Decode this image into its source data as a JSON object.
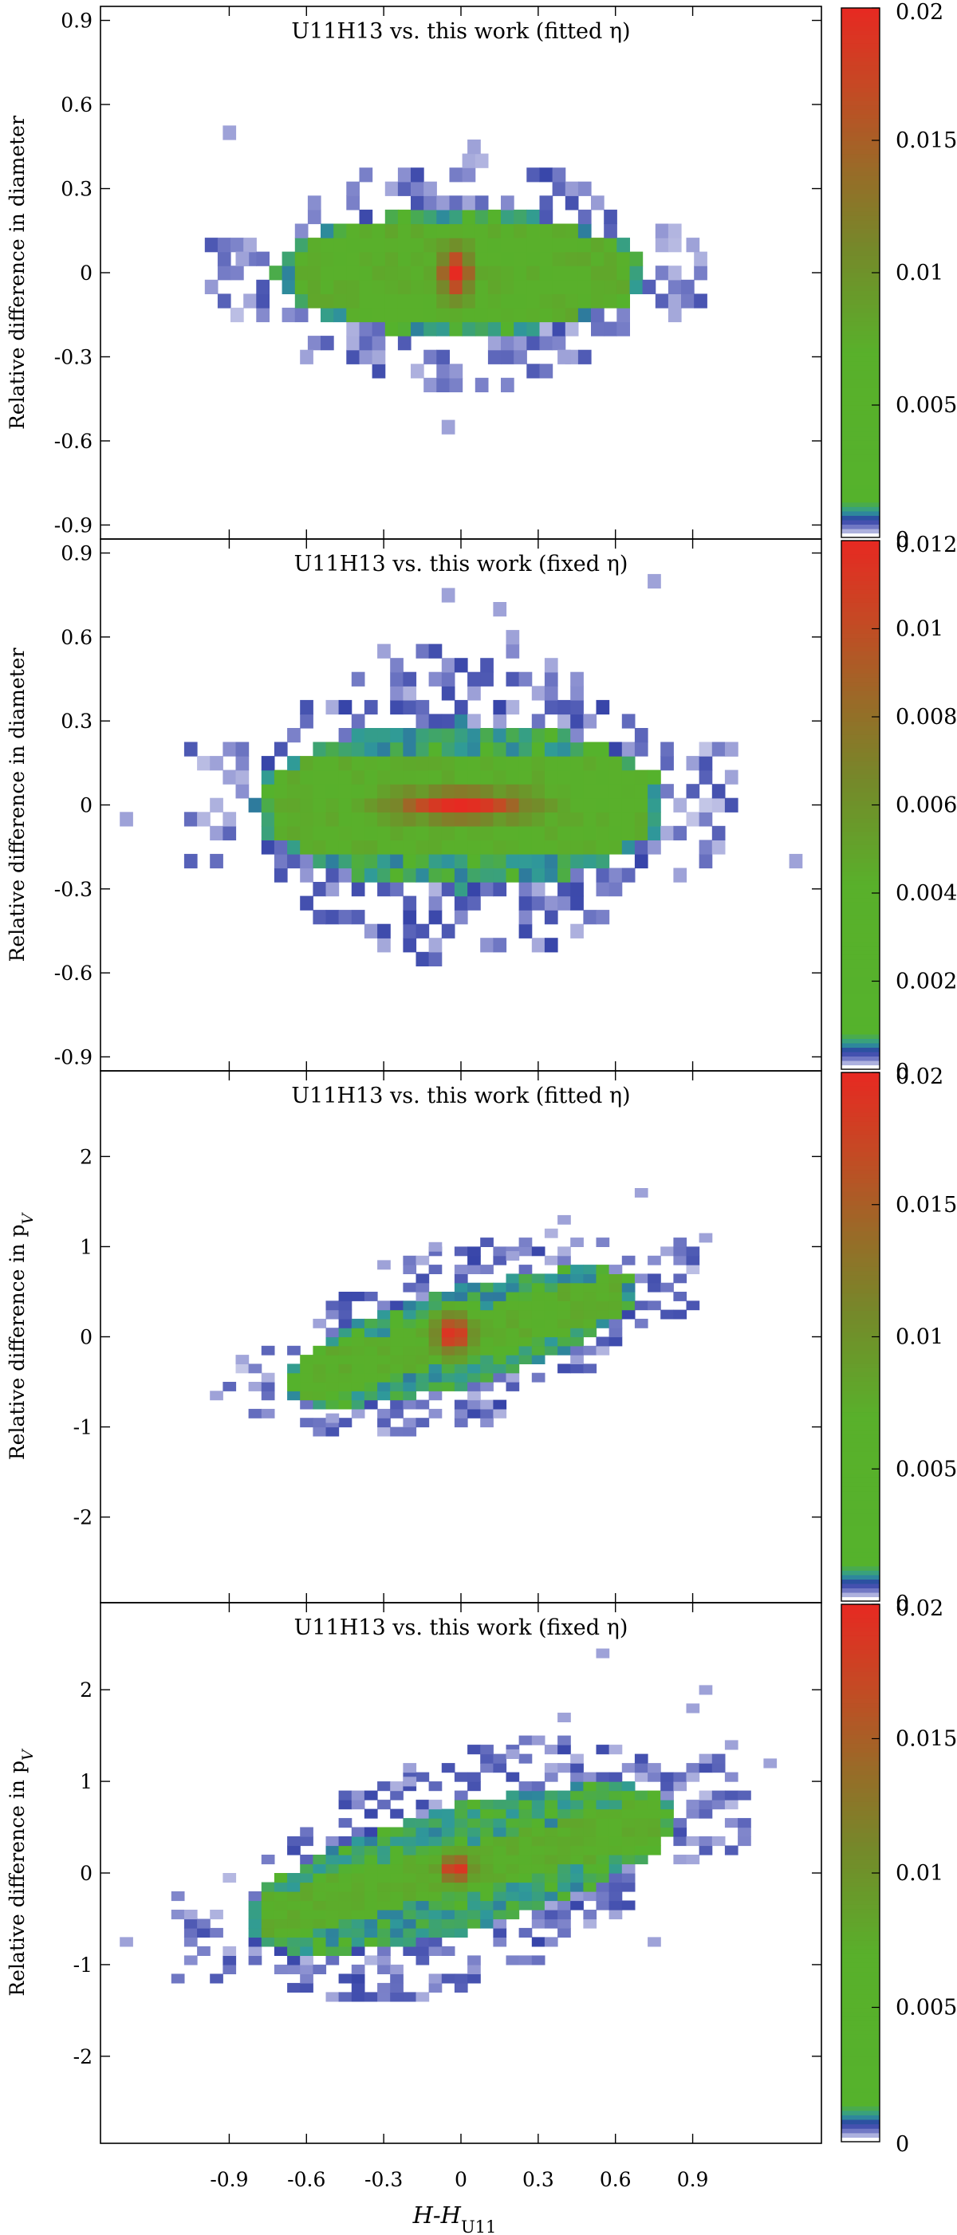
{
  "colors": {
    "scale_stops": [
      "#ffffff",
      "#8a8fd0",
      "#2b3aa3",
      "#2f9a9a",
      "#55b22c",
      "#59b02b",
      "#76882a",
      "#9a6a28",
      "#c44a24",
      "#e62a22"
    ],
    "axis": "#000000"
  },
  "xaxis": {
    "label_main": "H-H",
    "label_sub": "U11",
    "range": [
      -1.4,
      1.4
    ],
    "ticks": [
      -0.9,
      -0.6,
      -0.3,
      0,
      0.3,
      0.6,
      0.9
    ],
    "tick_labels": [
      "-0.9",
      "-0.6",
      "-0.3",
      "0",
      "0.3",
      "0.6",
      "0.9"
    ]
  },
  "chart_data": [
    {
      "type": "heatmap",
      "title": "U11H13 vs. this work (fitted η)",
      "ylabel": "Relative difference in diameter",
      "ylim": [
        -0.95,
        0.95
      ],
      "yticks": [
        -0.9,
        -0.6,
        -0.3,
        0,
        0.3,
        0.6,
        0.9
      ],
      "ytick_labels": [
        "-0.9",
        "-0.6",
        "-0.3",
        "0",
        "0.3",
        "0.6",
        "0.9"
      ],
      "colorbar": {
        "min": 0,
        "max": 0.02,
        "ticks": [
          0.005,
          0.01,
          0.015,
          0.02
        ],
        "tick_labels": [
          "0.005",
          "0.01",
          "0.015",
          "0.02"
        ],
        "zero_label": "0"
      },
      "shape": {
        "cx": 0.0,
        "cy": 0.0,
        "slope": 0.0,
        "half_width_x": 0.72,
        "half_height_y": 0.22,
        "core_height_y": 0.18,
        "peak_x": -0.02,
        "peak_y": 0.0,
        "peak_rx": 0.07,
        "peak_ry": 0.09,
        "x_step": 0.05,
        "y_step": 0.05
      },
      "outliers": [
        [
          -0.9,
          0.5
        ],
        [
          0.05,
          0.45
        ],
        [
          -0.05,
          -0.55
        ],
        [
          -0.85,
          0.05
        ],
        [
          0.9,
          0.1
        ],
        [
          -0.6,
          -0.3
        ],
        [
          0.4,
          -0.3
        ]
      ]
    },
    {
      "type": "heatmap",
      "title": "U11H13 vs. this work (fixed η)",
      "ylabel": "Relative difference in diameter",
      "ylim": [
        -0.95,
        0.95
      ],
      "yticks": [
        -0.9,
        -0.6,
        -0.3,
        0,
        0.3,
        0.6,
        0.9
      ],
      "ytick_labels": [
        "-0.9",
        "-0.6",
        "-0.3",
        "0",
        "0.3",
        "0.6",
        "0.9"
      ],
      "colorbar": {
        "min": 0,
        "max": 0.012,
        "ticks": [
          0.002,
          0.004,
          0.006,
          0.008,
          0.01,
          0.012
        ],
        "tick_labels": [
          "0.002",
          "0.004",
          "0.006",
          "0.008",
          "0.01",
          "0.012"
        ],
        "zero_label": "0"
      },
      "shape": {
        "cx": 0.0,
        "cy": 0.0,
        "slope": 0.0,
        "half_width_x": 0.8,
        "half_height_y": 0.3,
        "core_height_y": 0.18,
        "peak_x": 0.0,
        "peak_y": 0.0,
        "peak_rx": 0.28,
        "peak_ry": 0.06,
        "x_step": 0.05,
        "y_step": 0.05
      },
      "outliers": [
        [
          -0.05,
          0.75
        ],
        [
          0.15,
          0.7
        ],
        [
          0.75,
          0.8
        ],
        [
          -0.95,
          0.15
        ],
        [
          1.05,
          0.2
        ],
        [
          -1.3,
          -0.05
        ],
        [
          1.3,
          -0.2
        ],
        [
          0.85,
          -0.25
        ],
        [
          0.2,
          0.6
        ],
        [
          -0.3,
          0.55
        ]
      ]
    },
    {
      "type": "heatmap",
      "title": "U11H13 vs. this work (fitted η)",
      "ylabel": "Relative difference in p",
      "ylabel_sub": "V",
      "ylim": [
        -2.95,
        2.95
      ],
      "yticks": [
        -2,
        -1,
        0,
        1,
        2
      ],
      "ytick_labels": [
        "-2",
        "-1",
        "0",
        "1",
        "2"
      ],
      "colorbar": {
        "min": 0,
        "max": 0.02,
        "ticks": [
          0.005,
          0.01,
          0.015,
          0.02
        ],
        "tick_labels": [
          "0.005",
          "0.01",
          "0.015",
          "0.02"
        ],
        "zero_label": "0"
      },
      "shape": {
        "cx": 0.0,
        "cy": 0.0,
        "slope": 0.75,
        "half_width_x": 0.7,
        "half_height_y": 0.55,
        "core_height_y": 0.3,
        "peak_x": -0.03,
        "peak_y": 0.03,
        "peak_rx": 0.07,
        "peak_ry": 0.22,
        "x_step": 0.05,
        "y_step": 0.1
      },
      "outliers": [
        [
          -0.3,
          0.8
        ],
        [
          -0.1,
          1.0
        ],
        [
          0.7,
          1.6
        ],
        [
          0.95,
          1.1
        ],
        [
          -0.95,
          -0.65
        ],
        [
          0.2,
          0.9
        ],
        [
          -0.5,
          -0.9
        ],
        [
          0.4,
          1.3
        ]
      ]
    },
    {
      "type": "heatmap",
      "title": "U11H13 vs. this work (fixed η)",
      "ylabel": "Relative difference in p",
      "ylabel_sub": "V",
      "ylim": [
        -2.95,
        2.95
      ],
      "yticks": [
        -2,
        -1,
        0,
        1,
        2
      ],
      "ytick_labels": [
        "-2",
        "-1",
        "0",
        "1",
        "2"
      ],
      "colorbar": {
        "min": 0,
        "max": 0.02,
        "ticks": [
          0.005,
          0.01,
          0.015,
          0.02
        ],
        "tick_labels": [
          "0.005",
          "0.01",
          "0.015",
          "0.02"
        ],
        "zero_label": "0"
      },
      "shape": {
        "cx": 0.0,
        "cy": 0.05,
        "slope": 0.7,
        "half_width_x": 0.85,
        "half_height_y": 0.7,
        "core_height_y": 0.3,
        "peak_x": -0.02,
        "peak_y": 0.05,
        "peak_rx": 0.06,
        "peak_ry": 0.15,
        "x_step": 0.05,
        "y_step": 0.1
      },
      "outliers": [
        [
          0.55,
          2.4
        ],
        [
          1.2,
          1.2
        ],
        [
          0.9,
          1.8
        ],
        [
          0.4,
          1.7
        ],
        [
          -1.3,
          -0.75
        ],
        [
          0.75,
          -0.75
        ],
        [
          1.05,
          1.4
        ],
        [
          0.2,
          1.3
        ],
        [
          -0.2,
          1.0
        ],
        [
          0.95,
          2.0
        ]
      ]
    }
  ]
}
